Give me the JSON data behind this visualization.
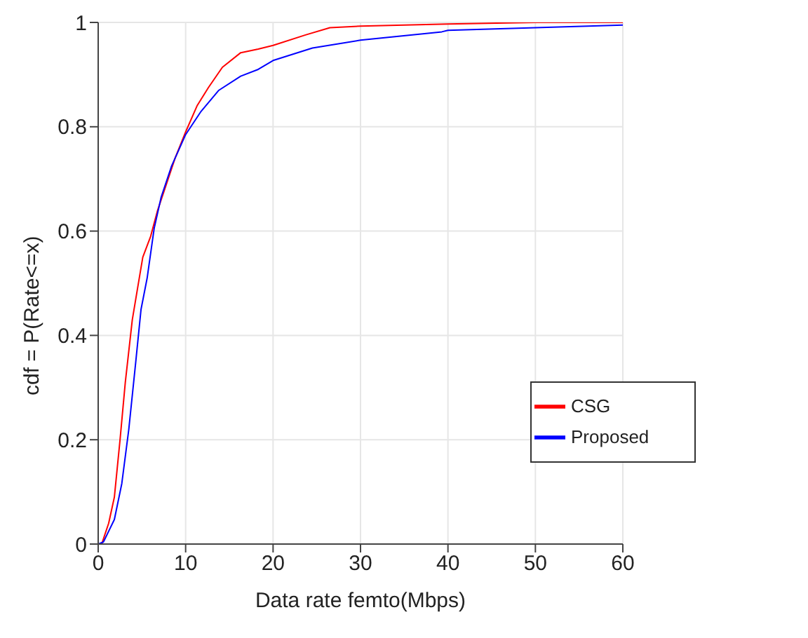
{
  "chart_data": {
    "type": "line",
    "xlabel": "Data rate femto(Mbps)",
    "ylabel": "cdf = P(Rate<=x)",
    "xlim": [
      0,
      60
    ],
    "xticks": [
      0,
      10,
      20,
      30,
      40,
      50,
      60
    ],
    "ylim": [
      0,
      1
    ],
    "yticks": [
      0,
      0.2,
      0.4,
      0.6,
      0.8,
      1
    ],
    "grid": true,
    "legend": "bottom right",
    "marker": "none",
    "line_style": "solid",
    "series": [
      {
        "name": "CSG",
        "color": "#ff0000",
        "x": [
          0,
          0.4,
          1.2,
          1.85,
          2.5,
          3.1,
          3.9,
          4.5,
          5.1,
          6,
          6.8,
          7.8,
          8.8,
          10,
          11.3,
          12.6,
          14.2,
          16.3,
          18.3,
          20,
          23.7,
          26.5,
          30,
          40,
          50,
          60
        ],
        "values": [
          0,
          0,
          0.04,
          0.09,
          0.2,
          0.31,
          0.43,
          0.49,
          0.55,
          0.59,
          0.64,
          0.69,
          0.74,
          0.79,
          0.84,
          0.875,
          0.914,
          0.942,
          0.949,
          0.956,
          0.976,
          0.99,
          0.993,
          0.997,
          1,
          1
        ]
      },
      {
        "name": "Proposed",
        "color": "#0000ff",
        "x": [
          0,
          0.6,
          1.85,
          2.7,
          3.5,
          4.3,
          4.9,
          5.6,
          6.4,
          7.2,
          8.4,
          10,
          11.7,
          13.8,
          16.3,
          18.3,
          20,
          24.5,
          30,
          39.3,
          40,
          50,
          60
        ],
        "values": [
          0,
          0.004,
          0.047,
          0.116,
          0.22,
          0.35,
          0.45,
          0.51,
          0.605,
          0.665,
          0.725,
          0.785,
          0.828,
          0.87,
          0.897,
          0.91,
          0.927,
          0.951,
          0.966,
          0.982,
          0.985,
          0.99,
          0.995
        ]
      }
    ]
  }
}
